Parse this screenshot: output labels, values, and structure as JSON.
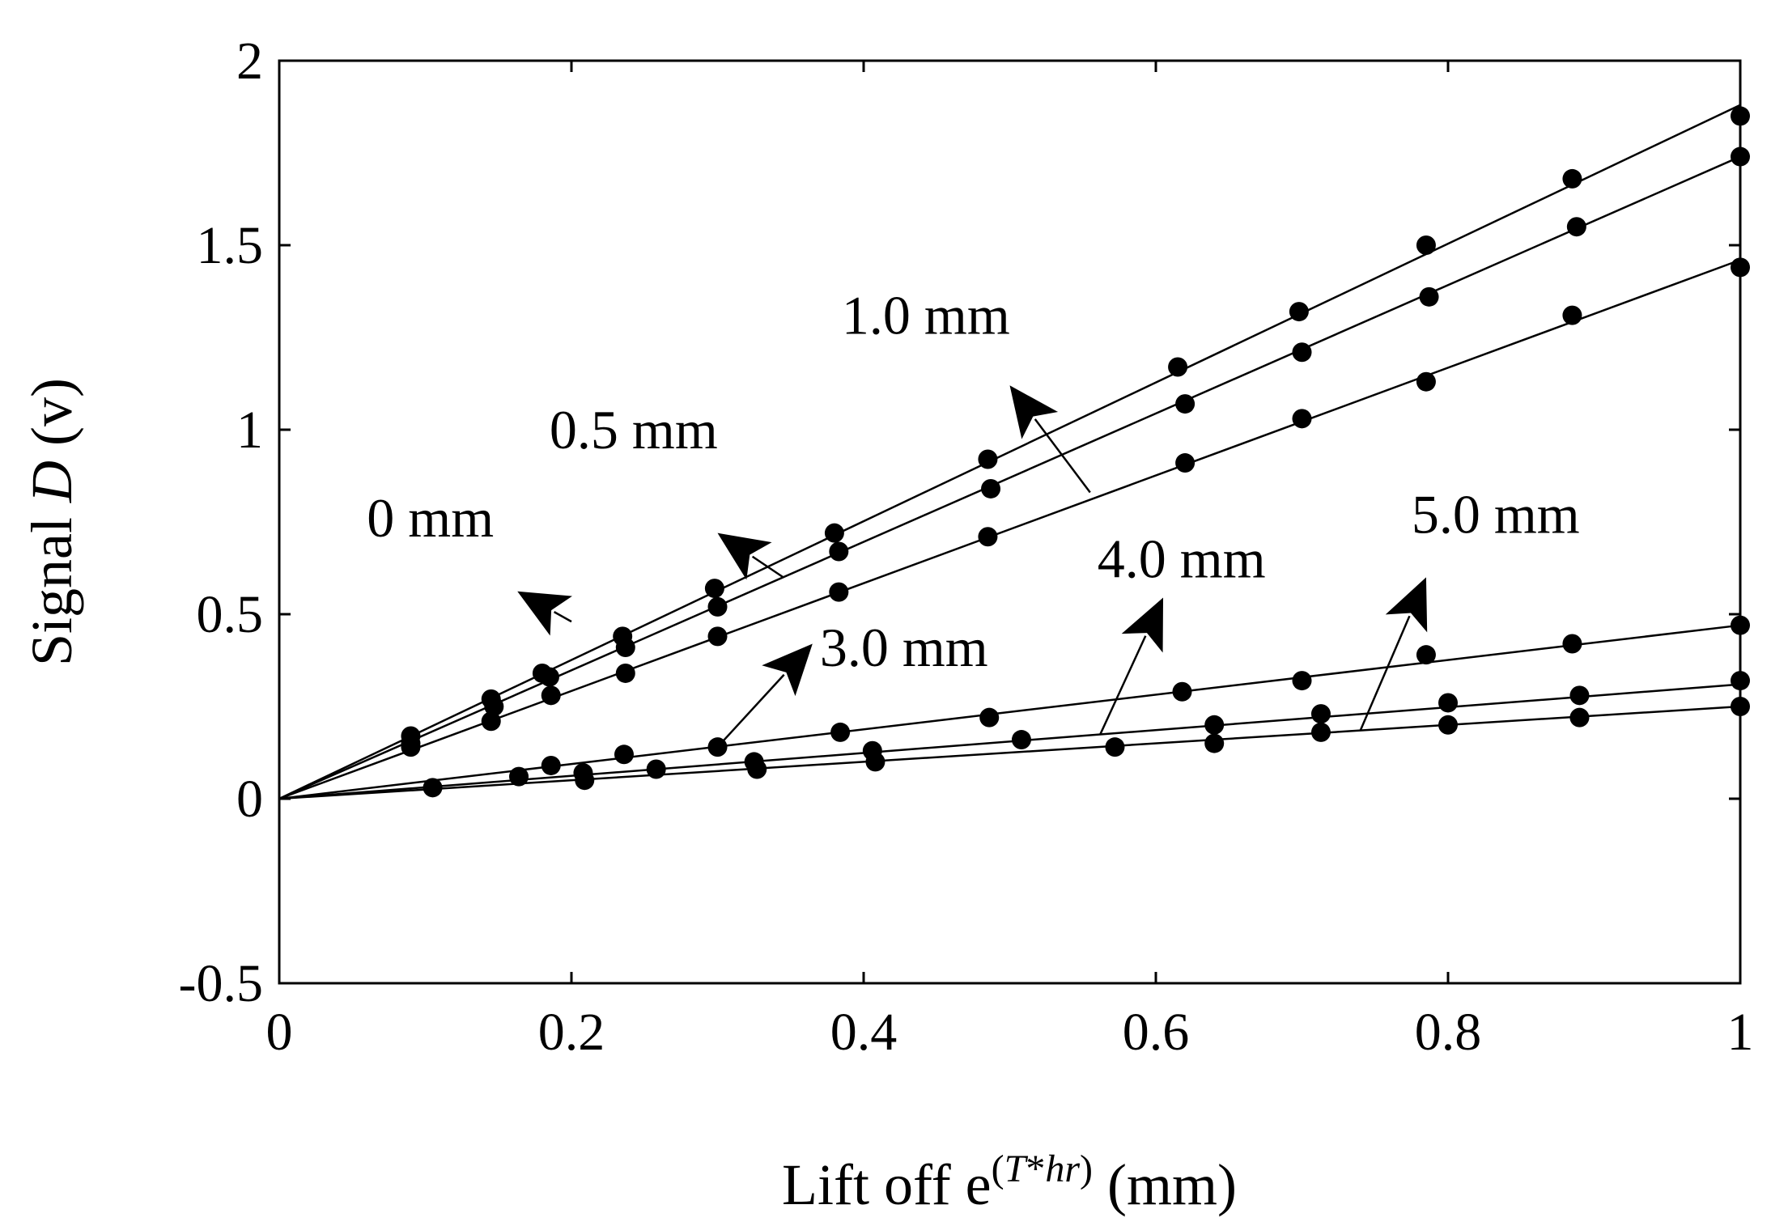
{
  "chart_data": {
    "type": "line",
    "title": "",
    "xlabel": {
      "prefix": "Lift off e",
      "superscript_open": "(",
      "superscript_T": "T",
      "superscript_star": "*",
      "superscript_hr": "hr",
      "superscript_close": ")",
      "suffix": " (mm)"
    },
    "ylabel": {
      "prefix": "Signal ",
      "var": "D",
      "suffix": " (v)"
    },
    "xlim": [
      0,
      1
    ],
    "ylim": [
      -0.5,
      2
    ],
    "xticks": [
      0,
      0.2,
      0.4,
      0.6,
      0.8,
      1
    ],
    "xtick_labels": [
      "0",
      "0.2",
      "0.4",
      "0.6",
      "0.8",
      "1"
    ],
    "yticks": [
      -0.5,
      0,
      0.5,
      1,
      1.5,
      2
    ],
    "ytick_labels": [
      "-0.5",
      "0",
      "0.5",
      "1",
      "1.5",
      "2"
    ],
    "grid": false,
    "series": [
      {
        "name": "0 mm",
        "slope": 1.88,
        "points": [
          [
            0.09,
            0.17
          ],
          [
            0.145,
            0.27
          ],
          [
            0.18,
            0.34
          ],
          [
            0.235,
            0.44
          ],
          [
            0.298,
            0.57
          ],
          [
            0.38,
            0.72
          ],
          [
            0.485,
            0.92
          ],
          [
            0.615,
            1.17
          ],
          [
            0.698,
            1.32
          ],
          [
            0.785,
            1.5
          ],
          [
            0.885,
            1.68
          ],
          [
            1.0,
            1.85
          ]
        ]
      },
      {
        "name": "0.5 mm",
        "slope": 1.74,
        "points": [
          [
            0.09,
            0.15
          ],
          [
            0.147,
            0.25
          ],
          [
            0.185,
            0.33
          ],
          [
            0.237,
            0.41
          ],
          [
            0.3,
            0.52
          ],
          [
            0.383,
            0.67
          ],
          [
            0.487,
            0.84
          ],
          [
            0.62,
            1.07
          ],
          [
            0.7,
            1.21
          ],
          [
            0.787,
            1.36
          ],
          [
            0.888,
            1.55
          ],
          [
            1.0,
            1.74
          ]
        ]
      },
      {
        "name": "1.0 mm",
        "slope": 1.46,
        "points": [
          [
            0.09,
            0.14
          ],
          [
            0.145,
            0.21
          ],
          [
            0.186,
            0.28
          ],
          [
            0.237,
            0.34
          ],
          [
            0.3,
            0.44
          ],
          [
            0.383,
            0.56
          ],
          [
            0.485,
            0.71
          ],
          [
            0.62,
            0.91
          ],
          [
            0.7,
            1.03
          ],
          [
            0.785,
            1.13
          ],
          [
            0.885,
            1.31
          ],
          [
            1.0,
            1.44
          ]
        ]
      },
      {
        "name": "3.0 mm",
        "slope": 0.47,
        "points": [
          [
            0.186,
            0.09
          ],
          [
            0.236,
            0.12
          ],
          [
            0.3,
            0.14
          ],
          [
            0.384,
            0.18
          ],
          [
            0.486,
            0.22
          ],
          [
            0.618,
            0.29
          ],
          [
            0.7,
            0.32
          ],
          [
            0.785,
            0.39
          ],
          [
            0.885,
            0.42
          ],
          [
            1.0,
            0.47
          ]
        ]
      },
      {
        "name": "4.0 mm",
        "slope": 0.31,
        "points": [
          [
            0.164,
            0.06
          ],
          [
            0.208,
            0.07
          ],
          [
            0.258,
            0.08
          ],
          [
            0.325,
            0.1
          ],
          [
            0.406,
            0.13
          ],
          [
            0.508,
            0.16
          ],
          [
            0.64,
            0.2
          ],
          [
            0.713,
            0.23
          ],
          [
            0.8,
            0.26
          ],
          [
            0.89,
            0.28
          ],
          [
            1.0,
            0.32
          ]
        ]
      },
      {
        "name": "5.0 mm",
        "slope": 0.25,
        "points": [
          [
            0.105,
            0.03
          ],
          [
            0.209,
            0.05
          ],
          [
            0.327,
            0.08
          ],
          [
            0.408,
            0.1
          ],
          [
            0.572,
            0.14
          ],
          [
            0.64,
            0.15
          ],
          [
            0.713,
            0.18
          ],
          [
            0.8,
            0.2
          ],
          [
            0.89,
            0.22
          ],
          [
            1.0,
            0.25
          ]
        ]
      }
    ],
    "annotations": [
      {
        "text": "0 mm",
        "label_xy": [
          0.06,
          0.71
        ],
        "arrow_tail": [
          0.2,
          0.48
        ],
        "arrow_head": [
          0.163,
          0.562
        ]
      },
      {
        "text": "0.5 mm",
        "label_xy": [
          0.185,
          0.95
        ],
        "arrow_tail": [
          0.345,
          0.6
        ],
        "arrow_head": [
          0.3,
          0.72
        ]
      },
      {
        "text": "1.0 mm",
        "label_xy": [
          0.385,
          1.26
        ],
        "arrow_tail": [
          0.555,
          0.83
        ],
        "arrow_head": [
          0.5,
          1.12
        ]
      },
      {
        "text": "3.0 mm",
        "label_xy": [
          0.37,
          0.36
        ],
        "arrow_tail": [
          0.3,
          0.14
        ],
        "arrow_head": [
          0.365,
          0.42
        ]
      },
      {
        "text": "4.0 mm",
        "label_xy": [
          0.56,
          0.6
        ],
        "arrow_tail": [
          0.562,
          0.175
        ],
        "arrow_head": [
          0.605,
          0.545
        ]
      },
      {
        "text": "5.0 mm",
        "label_xy": [
          0.775,
          0.72
        ],
        "arrow_tail": [
          0.74,
          0.185
        ],
        "arrow_head": [
          0.785,
          0.6
        ]
      }
    ]
  }
}
